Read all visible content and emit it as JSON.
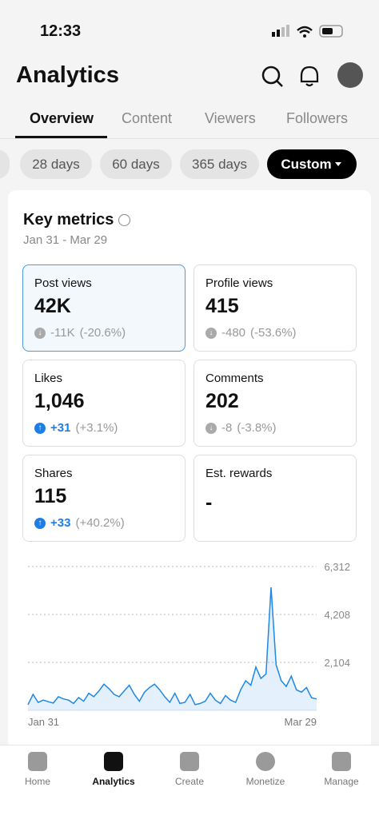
{
  "status_bar": {
    "time": "12:33"
  },
  "header": {
    "title": "Analytics"
  },
  "tabs": [
    "Overview",
    "Content",
    "Viewers",
    "Followers"
  ],
  "filters": [
    "28 days",
    "60 days",
    "365 days",
    "Custom"
  ],
  "card": {
    "title": "Key metrics",
    "date_range": "Jan 31 - Mar 29",
    "metrics": [
      {
        "label": "Post views",
        "value": "42K",
        "change": "-11K",
        "change_pct": "(-20.6%)"
      },
      {
        "label": "Profile views",
        "value": "415",
        "change": "-480",
        "change_pct": "(-53.6%)"
      },
      {
        "label": "Likes",
        "value": "1,046",
        "change": "+31",
        "change_pct": "(+3.1%)"
      },
      {
        "label": "Comments",
        "value": "202",
        "change": "-8",
        "change_pct": "(-3.8%)"
      },
      {
        "label": "Shares",
        "value": "115",
        "change": "+33",
        "change_pct": "(+40.2%)"
      },
      {
        "label": "Est. rewards",
        "value": "-"
      }
    ]
  },
  "chart_data": {
    "type": "line",
    "color": "#1e88e5",
    "grid": true,
    "categories": [
      "Jan 31",
      null,
      null,
      null,
      null,
      null,
      null,
      null,
      null,
      null,
      null,
      null,
      null,
      null,
      null,
      null,
      null,
      null,
      null,
      null,
      null,
      null,
      null,
      null,
      null,
      null,
      null,
      null,
      null,
      null,
      null,
      null,
      null,
      null,
      null,
      null,
      null,
      null,
      null,
      null,
      null,
      null,
      null,
      null,
      null,
      null,
      null,
      null,
      null,
      null,
      null,
      null,
      null,
      null,
      null,
      null,
      null,
      "Mar 29"
    ],
    "values": [
      250,
      700,
      350,
      450,
      380,
      320,
      600,
      500,
      450,
      300,
      560,
      400,
      750,
      600,
      850,
      1150,
      950,
      700,
      600,
      850,
      1100,
      700,
      400,
      800,
      1000,
      1150,
      900,
      600,
      350,
      750,
      300,
      350,
      700,
      250,
      300,
      400,
      750,
      450,
      300,
      650,
      450,
      350,
      900,
      1300,
      1100,
      1900,
      1400,
      1600,
      5400,
      2000,
      1300,
      1050,
      1500,
      900,
      800,
      1000,
      550,
      500
    ],
    "ylim": [
      0,
      6312
    ],
    "yticks": [
      {
        "value": 2104,
        "label": "2,104"
      },
      {
        "value": 4208,
        "label": "4,208"
      },
      {
        "value": 6312,
        "label": "6,312"
      }
    ]
  },
  "bottom_nav": [
    "Home",
    "Analytics",
    "Create",
    "Monetize",
    "Manage"
  ]
}
